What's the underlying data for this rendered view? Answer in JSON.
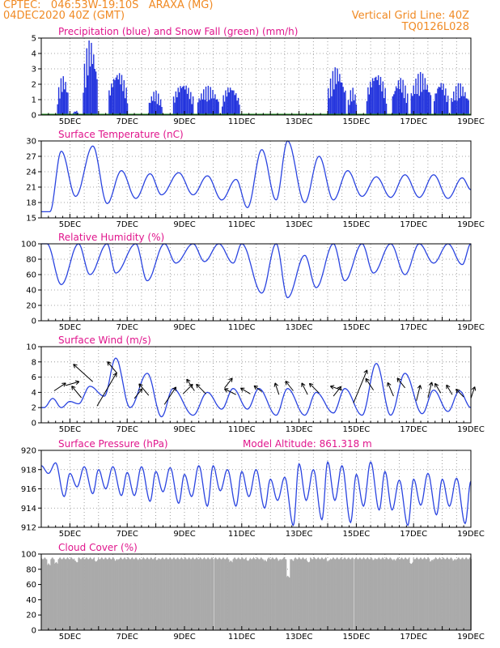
{
  "header": {
    "line1_left": "CPTEC:   046:53W-19:10S   ARAXA (MG)",
    "line2_left": "04DEC2020 40Z (GMT)",
    "line1_right": "Vertical Grid Line: 40Z",
    "line2_right": "TQ0126L028"
  },
  "colors": {
    "line": "#2a44e0",
    "bar": "#2233dd",
    "snow": "#1a8a1a",
    "cloud": "#aaaaaa",
    "title": "#e0158c",
    "header": "#f08a24"
  },
  "chart_data": [
    {
      "type": "bar",
      "title": "Precipitation (blue) and Snow Fall (green) (mm/h)",
      "x_tick_labels": [
        "5DEC",
        "7DEC",
        "9DEC",
        "11DEC",
        "13DEC",
        "15DEC",
        "17DEC",
        "19DEC"
      ],
      "ylim": [
        0,
        5
      ],
      "yticks": [
        0,
        1,
        2,
        3,
        4,
        5
      ],
      "grid": true,
      "series": [
        {
          "name": "Precipitation",
          "episodes": [
            [
              4.55,
              4.95,
              2.6
            ],
            [
              5.1,
              5.3,
              0.3
            ],
            [
              5.45,
              5.95,
              5.0
            ],
            [
              6.35,
              7.0,
              3.0
            ],
            [
              7.75,
              8.2,
              1.6
            ],
            [
              8.6,
              9.3,
              2.2
            ],
            [
              9.45,
              10.2,
              1.9
            ],
            [
              10.3,
              10.9,
              2.0
            ],
            [
              14.0,
              14.6,
              3.2
            ],
            [
              14.7,
              15.0,
              1.8
            ],
            [
              15.35,
              16.05,
              2.9
            ],
            [
              16.25,
              16.8,
              2.5
            ],
            [
              16.9,
              17.6,
              2.8
            ],
            [
              17.7,
              18.2,
              2.3
            ],
            [
              18.3,
              18.9,
              2.1
            ]
          ]
        },
        {
          "name": "Snow Fall",
          "values": [
            0
          ]
        }
      ]
    },
    {
      "type": "line",
      "title": "Surface Temperature (nC)",
      "x_tick_labels": [
        "5DEC",
        "7DEC",
        "9DEC",
        "11DEC",
        "13DEC",
        "15DEC",
        "17DEC",
        "19DEC"
      ],
      "ylim": [
        15,
        30
      ],
      "yticks": [
        15,
        18,
        21,
        24,
        27,
        30
      ],
      "grid": true,
      "series": [
        {
          "mean": 22.4,
          "amp": 4.0,
          "phase": 0.3,
          "peaks": [
            [
              4.7,
              28.0
            ],
            [
              5.8,
              29.0
            ],
            [
              6.8,
              24.2
            ],
            [
              7.8,
              23.6
            ],
            [
              8.8,
              23.8
            ],
            [
              9.8,
              23.2
            ],
            [
              10.8,
              22.5
            ],
            [
              11.7,
              28.3
            ],
            [
              12.6,
              30.0
            ],
            [
              13.7,
              27.0
            ],
            [
              14.7,
              24.2
            ],
            [
              15.7,
              23.0
            ],
            [
              16.7,
              23.4
            ],
            [
              17.7,
              23.4
            ],
            [
              18.7,
              22.8
            ]
          ],
          "troughs": [
            [
              4.3,
              16.2
            ],
            [
              5.2,
              19.2
            ],
            [
              6.3,
              17.8
            ],
            [
              7.3,
              18.8
            ],
            [
              8.2,
              19.5
            ],
            [
              9.3,
              19.5
            ],
            [
              10.3,
              18.5
            ],
            [
              11.2,
              17.0
            ],
            [
              12.2,
              18.5
            ],
            [
              13.2,
              18.0
            ],
            [
              14.2,
              18.5
            ],
            [
              15.2,
              19.2
            ],
            [
              16.2,
              19.0
            ],
            [
              17.2,
              19.0
            ],
            [
              18.2,
              18.8
            ],
            [
              19.0,
              20.5
            ]
          ]
        }
      ]
    },
    {
      "type": "line",
      "title": "Relative Humidity (%)",
      "x_tick_labels": [
        "5DEC",
        "7DEC",
        "9DEC",
        "11DEC",
        "13DEC",
        "15DEC",
        "17DEC",
        "19DEC"
      ],
      "ylim": [
        0,
        100
      ],
      "yticks": [
        0,
        20,
        40,
        60,
        80,
        100
      ],
      "grid": true,
      "series": [
        {
          "peaks": [
            [
              4.2,
              100
            ],
            [
              5.3,
              100
            ],
            [
              6.3,
              100
            ],
            [
              7.3,
              100
            ],
            [
              8.3,
              100
            ],
            [
              9.3,
              100
            ],
            [
              10.2,
              100
            ],
            [
              11.0,
              100
            ],
            [
              12.2,
              100
            ],
            [
              13.2,
              85
            ],
            [
              14.2,
              100
            ],
            [
              15.2,
              100
            ],
            [
              16.2,
              100
            ],
            [
              17.2,
              100
            ],
            [
              18.2,
              100
            ],
            [
              19.0,
              100
            ]
          ],
          "troughs": [
            [
              4.7,
              47
            ],
            [
              5.7,
              60
            ],
            [
              6.6,
              62
            ],
            [
              7.7,
              52
            ],
            [
              8.7,
              75
            ],
            [
              9.7,
              77
            ],
            [
              10.7,
              75
            ],
            [
              11.7,
              36
            ],
            [
              12.6,
              30
            ],
            [
              13.6,
              43
            ],
            [
              14.6,
              52
            ],
            [
              15.6,
              62
            ],
            [
              16.7,
              60
            ],
            [
              17.7,
              75
            ],
            [
              18.7,
              73
            ]
          ]
        }
      ]
    },
    {
      "type": "line",
      "title": "Surface Wind (m/s)",
      "x_tick_labels": [
        "5DEC",
        "7DEC",
        "9DEC",
        "11DEC",
        "13DEC",
        "15DEC",
        "17DEC",
        "19DEC"
      ],
      "ylim": [
        0,
        10
      ],
      "yticks": [
        0,
        2,
        4,
        6,
        8,
        10
      ],
      "grid": true,
      "series": [
        {
          "peaks": [
            [
              4.4,
              3.2
            ],
            [
              5.0,
              2.8
            ],
            [
              5.7,
              4.8
            ],
            [
              6.6,
              8.5
            ],
            [
              7.7,
              6.5
            ],
            [
              8.6,
              4.5
            ],
            [
              9.8,
              4.0
            ],
            [
              10.7,
              4.5
            ],
            [
              11.6,
              4.5
            ],
            [
              12.6,
              4.5
            ],
            [
              13.6,
              4.0
            ],
            [
              14.6,
              4.5
            ],
            [
              15.7,
              7.8
            ],
            [
              16.7,
              6.5
            ],
            [
              17.7,
              4.3
            ],
            [
              18.6,
              4.2
            ]
          ],
          "troughs": [
            [
              4.1,
              2.0
            ],
            [
              4.7,
              2.0
            ],
            [
              5.3,
              2.5
            ],
            [
              6.2,
              3.5
            ],
            [
              7.1,
              2.0
            ],
            [
              8.2,
              0.8
            ],
            [
              9.3,
              1.0
            ],
            [
              10.3,
              1.8
            ],
            [
              11.2,
              1.8
            ],
            [
              12.2,
              1.0
            ],
            [
              13.2,
              1.0
            ],
            [
              14.2,
              1.3
            ],
            [
              15.2,
              1.0
            ],
            [
              16.2,
              1.0
            ],
            [
              17.3,
              1.2
            ],
            [
              18.2,
              1.5
            ],
            [
              19.0,
              2.0
            ]
          ]
        }
      ],
      "wind_arrows": [
        [
          4.45,
          4.2,
          0.6,
          0.4
        ],
        [
          4.85,
          4.9,
          0.7,
          0.2
        ],
        [
          5.4,
          3.3,
          -0.5,
          0.6
        ],
        [
          5.8,
          5.4,
          -1.0,
          0.9
        ],
        [
          5.95,
          2.2,
          1.0,
          1.7
        ],
        [
          6.65,
          6.5,
          -0.5,
          0.6
        ],
        [
          7.25,
          3.2,
          0.4,
          0.5
        ],
        [
          7.75,
          3.6,
          -0.5,
          0.6
        ],
        [
          8.3,
          2.4,
          0.6,
          0.9
        ],
        [
          8.95,
          3.8,
          0.5,
          0.5
        ],
        [
          9.35,
          4.2,
          -0.4,
          0.6
        ],
        [
          9.75,
          3.8,
          -0.5,
          0.5
        ],
        [
          10.4,
          4.6,
          0.4,
          0.5
        ],
        [
          10.8,
          3.7,
          -0.6,
          0.3
        ],
        [
          11.3,
          3.8,
          -0.5,
          0.3
        ],
        [
          11.7,
          4.1,
          -0.4,
          0.3
        ],
        [
          12.3,
          3.7,
          -0.2,
          0.6
        ],
        [
          12.8,
          4.2,
          -0.4,
          0.5
        ],
        [
          13.3,
          3.7,
          -0.3,
          0.6
        ],
        [
          13.7,
          3.9,
          -0.5,
          0.5
        ],
        [
          14.2,
          3.5,
          0.4,
          0.5
        ],
        [
          14.5,
          4.3,
          -0.6,
          0.2
        ],
        [
          14.9,
          2.6,
          0.7,
          1.7
        ],
        [
          15.6,
          4.3,
          -0.4,
          0.6
        ],
        [
          16.3,
          3.5,
          -0.3,
          0.7
        ],
        [
          16.7,
          4.6,
          -0.4,
          0.5
        ],
        [
          17.1,
          2.9,
          0.2,
          0.8
        ],
        [
          17.5,
          3.3,
          0.2,
          0.8
        ],
        [
          17.95,
          3.9,
          -0.3,
          0.5
        ],
        [
          18.35,
          3.7,
          -0.3,
          0.5
        ],
        [
          18.75,
          3.4,
          -0.4,
          0.4
        ],
        [
          19.0,
          3.2,
          0.2,
          0.6
        ]
      ]
    },
    {
      "type": "line",
      "title": "Surface Pressure (hPa)",
      "annotation": "Model Altitude: 861.318 m",
      "x_tick_labels": [
        "5DEC",
        "7DEC",
        "9DEC",
        "11DEC",
        "13DEC",
        "15DEC",
        "17DEC",
        "19DEC"
      ],
      "ylim": [
        912,
        920
      ],
      "yticks": [
        912,
        914,
        916,
        918,
        920
      ],
      "grid": true,
      "series": [
        {
          "peaks": [
            [
              4.0,
              918.4
            ],
            [
              4.5,
              918.7
            ],
            [
              5.0,
              917.6
            ],
            [
              5.5,
              918.3
            ],
            [
              6.0,
              918.0
            ],
            [
              6.5,
              918.3
            ],
            [
              7.0,
              917.7
            ],
            [
              7.5,
              918.3
            ],
            [
              8.0,
              917.8
            ],
            [
              8.5,
              918.2
            ],
            [
              9.0,
              917.5
            ],
            [
              9.5,
              918.4
            ],
            [
              10.0,
              918.4
            ],
            [
              10.5,
              918.0
            ],
            [
              11.0,
              917.8
            ],
            [
              11.5,
              918.0
            ],
            [
              12.0,
              917.0
            ],
            [
              12.5,
              917.2
            ],
            [
              13.0,
              918.6
            ],
            [
              13.5,
              918.0
            ],
            [
              14.0,
              918.8
            ],
            [
              14.5,
              918.4
            ],
            [
              15.0,
              917.5
            ],
            [
              15.5,
              918.8
            ],
            [
              16.0,
              917.8
            ],
            [
              16.5,
              916.9
            ],
            [
              17.0,
              917.0
            ],
            [
              17.5,
              917.6
            ],
            [
              18.0,
              917.0
            ],
            [
              18.5,
              917.1
            ],
            [
              19.0,
              916.8
            ]
          ],
          "troughs": [
            [
              4.25,
              917.6
            ],
            [
              4.8,
              915.2
            ],
            [
              5.25,
              916.2
            ],
            [
              5.8,
              915.5
            ],
            [
              6.25,
              916.0
            ],
            [
              6.8,
              915.3
            ],
            [
              7.25,
              915.3
            ],
            [
              7.8,
              914.7
            ],
            [
              8.25,
              915.7
            ],
            [
              8.8,
              914.5
            ],
            [
              9.25,
              915.2
            ],
            [
              9.8,
              914.2
            ],
            [
              10.25,
              915.8
            ],
            [
              10.8,
              914.2
            ],
            [
              11.25,
              915.2
            ],
            [
              11.8,
              914.0
            ],
            [
              12.25,
              914.8
            ],
            [
              12.8,
              912.2
            ],
            [
              13.25,
              914.8
            ],
            [
              13.8,
              912.8
            ],
            [
              14.25,
              914.8
            ],
            [
              14.8,
              912.5
            ],
            [
              15.25,
              914.2
            ],
            [
              15.8,
              913.8
            ],
            [
              16.25,
              913.8
            ],
            [
              16.8,
              912.2
            ],
            [
              17.25,
              914.3
            ],
            [
              17.8,
              913.3
            ],
            [
              18.25,
              914.2
            ],
            [
              18.8,
              912.4
            ]
          ]
        }
      ]
    },
    {
      "type": "area",
      "title": "Cloud Cover (%)",
      "x_tick_labels": [
        "5DEC",
        "7DEC",
        "9DEC",
        "11DEC",
        "13DEC",
        "15DEC",
        "17DEC",
        "19DEC"
      ],
      "ylim": [
        0,
        100
      ],
      "yticks": [
        0,
        20,
        40,
        60,
        80,
        100
      ],
      "grid": true,
      "series": [
        {
          "base": 96,
          "gaps": [
            [
              10.02,
              0
            ],
            [
              14.9,
              0
            ]
          ],
          "dips": [
            [
              4.25,
              88
            ],
            [
              4.5,
              90
            ],
            [
              5.2,
              92
            ],
            [
              5.9,
              93
            ],
            [
              6.6,
              94
            ],
            [
              7.4,
              95
            ],
            [
              8.05,
              95
            ],
            [
              10.6,
              92
            ],
            [
              11.2,
              94
            ],
            [
              11.8,
              93
            ],
            [
              12.3,
              94
            ],
            [
              12.6,
              72
            ],
            [
              12.75,
              94
            ],
            [
              13.3,
              92
            ],
            [
              14.0,
              93
            ],
            [
              15.6,
              95
            ],
            [
              16.3,
              94
            ],
            [
              16.9,
              90
            ],
            [
              17.6,
              93
            ],
            [
              18.4,
              94
            ]
          ]
        }
      ]
    }
  ]
}
